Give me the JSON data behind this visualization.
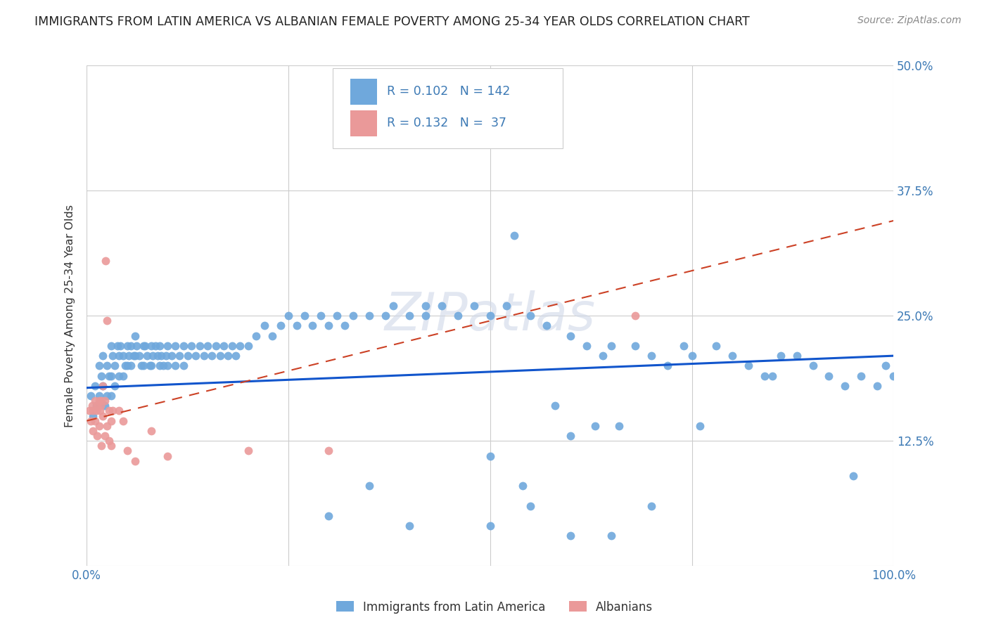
{
  "title": "IMMIGRANTS FROM LATIN AMERICA VS ALBANIAN FEMALE POVERTY AMONG 25-34 YEAR OLDS CORRELATION CHART",
  "source": "Source: ZipAtlas.com",
  "ylabel": "Female Poverty Among 25-34 Year Olds",
  "xlim": [
    0,
    1.0
  ],
  "ylim": [
    0,
    0.5
  ],
  "blue_color": "#6fa8dc",
  "pink_color": "#ea9999",
  "blue_line_color": "#1155cc",
  "pink_line_color": "#cc4125",
  "watermark": "ZIPatlas",
  "background_color": "#ffffff",
  "grid_color": "#cccccc",
  "blue_R": "0.102",
  "blue_N": "142",
  "pink_R": "0.132",
  "pink_N": "37",
  "blue_x": [
    0.005,
    0.008,
    0.01,
    0.012,
    0.015,
    0.015,
    0.018,
    0.02,
    0.02,
    0.022,
    0.025,
    0.025,
    0.028,
    0.03,
    0.03,
    0.03,
    0.032,
    0.035,
    0.035,
    0.038,
    0.04,
    0.04,
    0.042,
    0.045,
    0.045,
    0.048,
    0.05,
    0.05,
    0.052,
    0.055,
    0.055,
    0.058,
    0.06,
    0.06,
    0.062,
    0.065,
    0.068,
    0.07,
    0.07,
    0.072,
    0.075,
    0.078,
    0.08,
    0.08,
    0.082,
    0.085,
    0.088,
    0.09,
    0.09,
    0.092,
    0.095,
    0.098,
    0.1,
    0.1,
    0.105,
    0.11,
    0.11,
    0.115,
    0.12,
    0.12,
    0.125,
    0.13,
    0.135,
    0.14,
    0.145,
    0.15,
    0.155,
    0.16,
    0.165,
    0.17,
    0.175,
    0.18,
    0.185,
    0.19,
    0.2,
    0.21,
    0.22,
    0.23,
    0.24,
    0.25,
    0.26,
    0.27,
    0.28,
    0.29,
    0.3,
    0.31,
    0.32,
    0.33,
    0.35,
    0.37,
    0.38,
    0.4,
    0.42,
    0.42,
    0.44,
    0.45,
    0.46,
    0.48,
    0.5,
    0.5,
    0.52,
    0.53,
    0.54,
    0.55,
    0.57,
    0.58,
    0.6,
    0.6,
    0.62,
    0.63,
    0.64,
    0.65,
    0.66,
    0.68,
    0.7,
    0.72,
    0.74,
    0.75,
    0.76,
    0.78,
    0.8,
    0.82,
    0.84,
    0.85,
    0.86,
    0.88,
    0.9,
    0.92,
    0.94,
    0.95,
    0.96,
    0.98,
    0.99,
    1.0,
    0.3,
    0.35,
    0.4,
    0.5,
    0.55,
    0.6,
    0.65,
    0.7
  ],
  "blue_y": [
    0.17,
    0.15,
    0.18,
    0.16,
    0.2,
    0.17,
    0.19,
    0.21,
    0.18,
    0.16,
    0.2,
    0.17,
    0.19,
    0.22,
    0.19,
    0.17,
    0.21,
    0.2,
    0.18,
    0.22,
    0.21,
    0.19,
    0.22,
    0.21,
    0.19,
    0.2,
    0.22,
    0.2,
    0.21,
    0.22,
    0.2,
    0.21,
    0.23,
    0.21,
    0.22,
    0.21,
    0.2,
    0.22,
    0.2,
    0.22,
    0.21,
    0.2,
    0.22,
    0.2,
    0.21,
    0.22,
    0.21,
    0.22,
    0.2,
    0.21,
    0.2,
    0.21,
    0.22,
    0.2,
    0.21,
    0.22,
    0.2,
    0.21,
    0.22,
    0.2,
    0.21,
    0.22,
    0.21,
    0.22,
    0.21,
    0.22,
    0.21,
    0.22,
    0.21,
    0.22,
    0.21,
    0.22,
    0.21,
    0.22,
    0.22,
    0.23,
    0.24,
    0.23,
    0.24,
    0.25,
    0.24,
    0.25,
    0.24,
    0.25,
    0.24,
    0.25,
    0.24,
    0.25,
    0.25,
    0.25,
    0.26,
    0.25,
    0.26,
    0.25,
    0.26,
    0.47,
    0.25,
    0.26,
    0.11,
    0.25,
    0.26,
    0.33,
    0.08,
    0.25,
    0.24,
    0.16,
    0.23,
    0.13,
    0.22,
    0.14,
    0.21,
    0.22,
    0.14,
    0.22,
    0.21,
    0.2,
    0.22,
    0.21,
    0.14,
    0.22,
    0.21,
    0.2,
    0.19,
    0.19,
    0.21,
    0.21,
    0.2,
    0.19,
    0.18,
    0.09,
    0.19,
    0.18,
    0.2,
    0.19,
    0.05,
    0.08,
    0.04,
    0.04,
    0.06,
    0.03,
    0.03,
    0.06
  ],
  "pink_x": [
    0.003,
    0.005,
    0.007,
    0.008,
    0.008,
    0.01,
    0.01,
    0.012,
    0.013,
    0.013,
    0.015,
    0.015,
    0.016,
    0.017,
    0.018,
    0.018,
    0.02,
    0.02,
    0.022,
    0.022,
    0.023,
    0.025,
    0.025,
    0.028,
    0.028,
    0.03,
    0.03,
    0.032,
    0.04,
    0.045,
    0.05,
    0.06,
    0.08,
    0.1,
    0.2,
    0.3,
    0.68
  ],
  "pink_y": [
    0.155,
    0.145,
    0.16,
    0.155,
    0.135,
    0.165,
    0.145,
    0.155,
    0.16,
    0.13,
    0.165,
    0.14,
    0.155,
    0.16,
    0.165,
    0.12,
    0.18,
    0.15,
    0.165,
    0.13,
    0.305,
    0.245,
    0.14,
    0.155,
    0.125,
    0.145,
    0.12,
    0.155,
    0.155,
    0.145,
    0.115,
    0.105,
    0.135,
    0.11,
    0.115,
    0.115,
    0.25
  ]
}
